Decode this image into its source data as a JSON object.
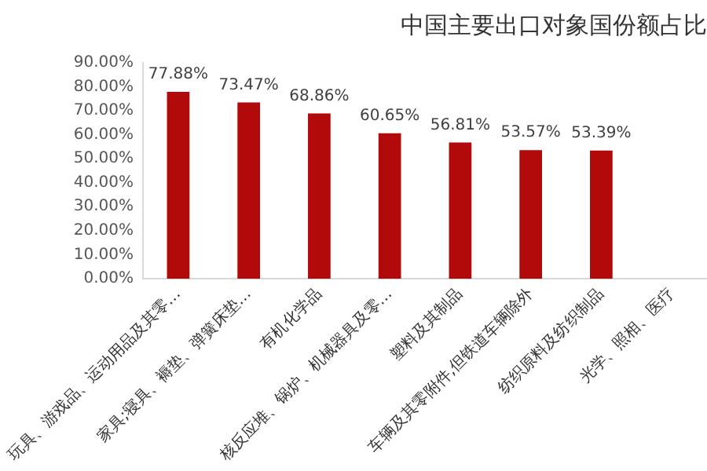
{
  "chart_data": {
    "type": "bar",
    "title": "中国主要出口对象国份额占比",
    "categories": [
      "玩具、游戏品、运动用品及其零…",
      "家具;寝具、褥垫、弹簧床垫…",
      "有机化学品",
      "核反应堆、锅炉、机械器具及零…",
      "塑料及其制品",
      "车辆及其零附件,但铁道车辆除外",
      "纺织原料及纺织制品",
      "光学、照相、医疗"
    ],
    "values": [
      77.88,
      73.47,
      68.86,
      60.65,
      56.81,
      53.57,
      53.39,
      null
    ],
    "value_labels": [
      "77.88%",
      "73.47%",
      "68.86%",
      "60.65%",
      "56.81%",
      "53.57%",
      "53.39%",
      null
    ],
    "color": "#b20a0a",
    "ylim": [
      0,
      90
    ],
    "yticks": [
      {
        "value": 0,
        "label": "0.00%"
      },
      {
        "value": 10,
        "label": "10.00%"
      },
      {
        "value": 20,
        "label": "20.00%"
      },
      {
        "value": 30,
        "label": "30.00%"
      },
      {
        "value": 40,
        "label": "40.00%"
      },
      {
        "value": 50,
        "label": "50.00%"
      },
      {
        "value": 60,
        "label": "60.00%"
      },
      {
        "value": 70,
        "label": "70.00%"
      },
      {
        "value": 80,
        "label": "80.00%"
      },
      {
        "value": 90,
        "label": "90.00%"
      }
    ],
    "grid": false,
    "legend": false
  }
}
